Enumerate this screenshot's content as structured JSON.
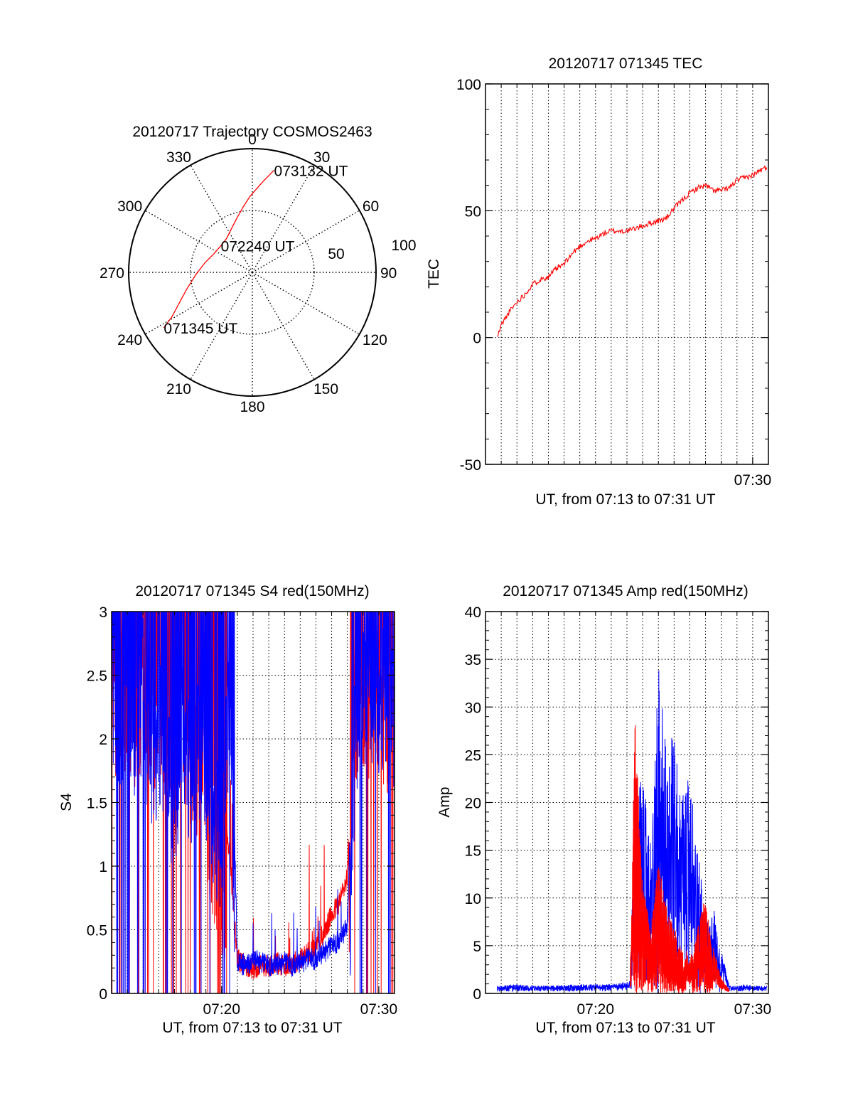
{
  "colors": {
    "red": "#ff0000",
    "blue": "#0000ff",
    "axis": "#000000",
    "grid": "#000000"
  },
  "chart_data": [
    {
      "type": "polar",
      "title": "20120717 Trajectory COSMOS2463",
      "angle_labels": [
        "0",
        "30",
        "60",
        "90",
        "120",
        "150",
        "180",
        "210",
        "240",
        "270",
        "300",
        "330"
      ],
      "ring_labels": [
        "50",
        "100"
      ],
      "r_max": 90,
      "series": [
        {
          "color": "red",
          "points": [
            [
              238,
              76
            ],
            [
              241,
              67
            ],
            [
              247,
              58
            ],
            [
              256,
              49
            ],
            [
              268,
              41
            ],
            [
              282,
              35
            ],
            [
              296,
              31
            ],
            [
              310,
              30
            ],
            [
              323,
              31
            ],
            [
              334,
              35
            ],
            [
              344,
              41
            ],
            [
              352,
              48
            ],
            [
              358,
              55
            ],
            [
              3,
              61
            ],
            [
              7,
              67
            ],
            [
              10,
              72
            ],
            [
              12,
              76
            ]
          ]
        }
      ],
      "annotations": [
        {
          "text": "071345 UT",
          "az": 238,
          "r": 76
        },
        {
          "text": "072240 UT",
          "az": 310,
          "r": 30
        },
        {
          "text": "073132 UT",
          "az": 12,
          "r": 76
        }
      ]
    },
    {
      "type": "line",
      "title": "20120717 071345 TEC",
      "ylabel": "TEC",
      "xlabel": "UT, from 07:13 to 07:31 UT",
      "xlim": [
        0,
        18
      ],
      "ylim": [
        -50,
        100
      ],
      "yticks": [
        -50,
        0,
        50,
        100
      ],
      "xticks": [
        {
          "value": 17,
          "label": "07:30"
        }
      ],
      "series": [
        {
          "color": "red",
          "x": [
            0.75,
            1,
            1.5,
            2,
            2.5,
            3,
            3.5,
            4,
            4.5,
            5,
            5.5,
            6,
            6.5,
            7,
            7.5,
            8,
            8.5,
            9,
            9.5,
            10,
            10.5,
            11,
            11.5,
            12,
            12.5,
            13,
            13.5,
            14,
            14.5,
            15,
            15.5,
            16,
            16.5,
            17,
            17.5,
            17.9
          ],
          "y": [
            0,
            5,
            10,
            14,
            17,
            21,
            23,
            24,
            27,
            29,
            33,
            36,
            38,
            39,
            41,
            42,
            42,
            42,
            43,
            44,
            45,
            46,
            47,
            51,
            54,
            57,
            59,
            60,
            58,
            58,
            59,
            62,
            63,
            64,
            66,
            67
          ]
        }
      ]
    },
    {
      "type": "line",
      "title": "20120717 071345 S4 red(150MHz)",
      "ylabel": "S4",
      "xlabel": "UT, from 07:13 to 07:31 UT",
      "xlim": [
        0,
        18
      ],
      "ylim": [
        0,
        3
      ],
      "yticks": [
        0,
        0.5,
        1,
        1.5,
        2,
        2.5,
        3
      ],
      "ytick_labels": [
        "0",
        "0.5",
        "1",
        "1.5",
        "2",
        "2.5",
        "3"
      ],
      "xticks": [
        {
          "value": 7,
          "label": "07:20"
        },
        {
          "value": 17,
          "label": "07:30"
        }
      ],
      "series": [
        {
          "color": "red",
          "x": [
            0,
            0.5,
            1,
            1.5,
            2,
            2.5,
            3,
            3.5,
            4,
            4.5,
            5,
            5.5,
            6,
            6.5,
            7,
            7.5,
            8,
            8.5,
            9,
            9.5,
            10,
            10.5,
            11,
            11.5,
            12,
            12.5,
            13,
            13.5,
            14,
            14.5,
            15,
            15.5,
            16,
            16.5,
            17,
            17.5,
            18
          ],
          "y": [
            3,
            2.8,
            3,
            2.6,
            3,
            2.4,
            2.9,
            2.7,
            2.2,
            3,
            2.5,
            2.4,
            2.1,
            1.7,
            1.4,
            1.1,
            0.25,
            0.2,
            0.18,
            0.2,
            0.2,
            0.22,
            0.2,
            0.22,
            0.25,
            0.3,
            0.35,
            0.45,
            0.6,
            0.7,
            0.9,
            2.8,
            3,
            2.8,
            3,
            2.6,
            2.7
          ]
        },
        {
          "color": "blue",
          "x": [
            0,
            0.5,
            1,
            1.5,
            2,
            2.5,
            3,
            3.5,
            4,
            4.5,
            5,
            5.5,
            6,
            6.5,
            7,
            7.5,
            8,
            8.5,
            9,
            9.5,
            10,
            10.5,
            11,
            11.5,
            12,
            12.5,
            13,
            13.5,
            14,
            14.5,
            15,
            15.5,
            16,
            16.5,
            17,
            17.5,
            18
          ],
          "y": [
            3,
            2.6,
            2.9,
            2.5,
            3,
            2.2,
            2.7,
            2.5,
            2.0,
            2.8,
            2.3,
            2.6,
            2.4,
            2.0,
            1.8,
            3.0,
            0.22,
            0.2,
            0.25,
            0.22,
            0.2,
            0.2,
            0.22,
            0.2,
            0.22,
            0.25,
            0.25,
            0.3,
            0.35,
            0.4,
            0.5,
            2.7,
            3,
            3,
            2.9,
            3,
            2.8
          ]
        }
      ]
    },
    {
      "type": "line",
      "title": "20120717 071345 Amp red(150MHz)",
      "ylabel": "Amp",
      "xlabel": "UT, from 07:13 to 07:31 UT",
      "xlim": [
        0,
        18
      ],
      "ylim": [
        0,
        40
      ],
      "yticks": [
        0,
        5,
        10,
        15,
        20,
        25,
        30,
        35,
        40
      ],
      "xticks": [
        {
          "value": 7,
          "label": "07:20"
        },
        {
          "value": 17,
          "label": "07:30"
        }
      ],
      "series": [
        {
          "color": "blue",
          "x": [
            0.75,
            2,
            4,
            6,
            8,
            9.2,
            9.5,
            10,
            10.5,
            11,
            11.5,
            12,
            12.5,
            13,
            13.5,
            14,
            14.5,
            15,
            15.5,
            16,
            16.5,
            17,
            17.5,
            17.9
          ],
          "y": [
            0.5,
            0.6,
            0.5,
            0.6,
            0.6,
            0.8,
            18,
            20,
            14,
            30,
            22,
            24,
            18,
            20,
            14,
            6,
            8,
            3,
            0.5,
            0.5,
            0.6,
            0.5,
            0.5,
            0.5
          ]
        },
        {
          "color": "red",
          "x": [
            9.2,
            9.5,
            10,
            10.5,
            11,
            11.5,
            12,
            12.5,
            13,
            13.5,
            14,
            14.5,
            15,
            15.5
          ],
          "y": [
            0.5,
            26,
            10,
            6,
            12,
            8,
            6,
            4,
            2,
            6,
            9,
            3,
            1,
            0.3
          ]
        }
      ]
    }
  ]
}
